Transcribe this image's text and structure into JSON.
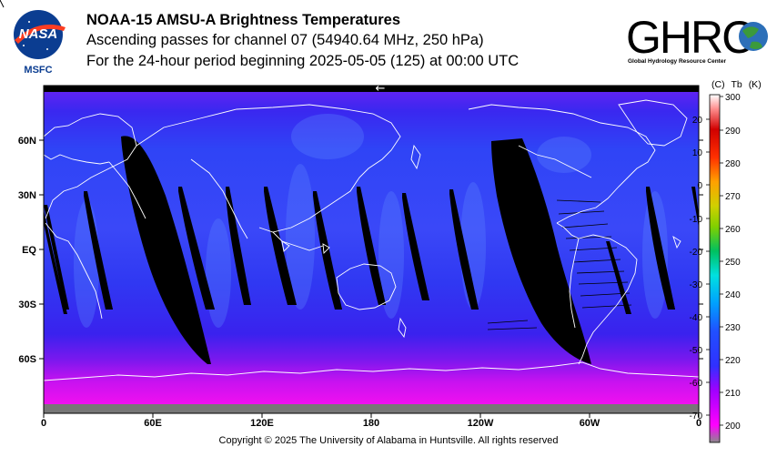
{
  "title": {
    "line1": "NOAA-15 AMSU-A Brightness Temperatures",
    "line2": "Ascending passes for channel 07 (54940.64 MHz, 250 hPa)",
    "line3": "For the 24-hour period beginning 2025-05-05 (125) at 00:00 UTC"
  },
  "logos": {
    "nasa_text": "NASA",
    "msfc_text": "MSFC",
    "ghrc_text": "GHRC",
    "ghrc_sub": "Global Hydrology Resource Center"
  },
  "map": {
    "lat_labels": [
      "60N",
      "30N",
      "EQ",
      "30S",
      "60S"
    ],
    "lon_labels": [
      "0",
      "60E",
      "120E",
      "180",
      "120W",
      "60W",
      "0"
    ],
    "arrow": "←",
    "colors": {
      "ocean_fill": "#3a20f0",
      "polar_fill": "#e010f0",
      "gap_fill": "#000000",
      "coast": "#ffffff"
    }
  },
  "colorbar": {
    "header_c": "(C)",
    "header_tb": "Tb",
    "header_k": "(K)",
    "kelvin_ticks": [
      "300",
      "290",
      "280",
      "270",
      "260",
      "250",
      "240",
      "230",
      "220",
      "210",
      "200"
    ],
    "celsius_ticks": [
      "20",
      "10",
      "0",
      "-10",
      "-20",
      "-30",
      "-40",
      "-50",
      "-60",
      "-70"
    ],
    "range_k": [
      195,
      300
    ]
  },
  "footer": {
    "copyright": "Copyright © 2025 The University of Alabama in Huntsville.  All rights reserved"
  }
}
